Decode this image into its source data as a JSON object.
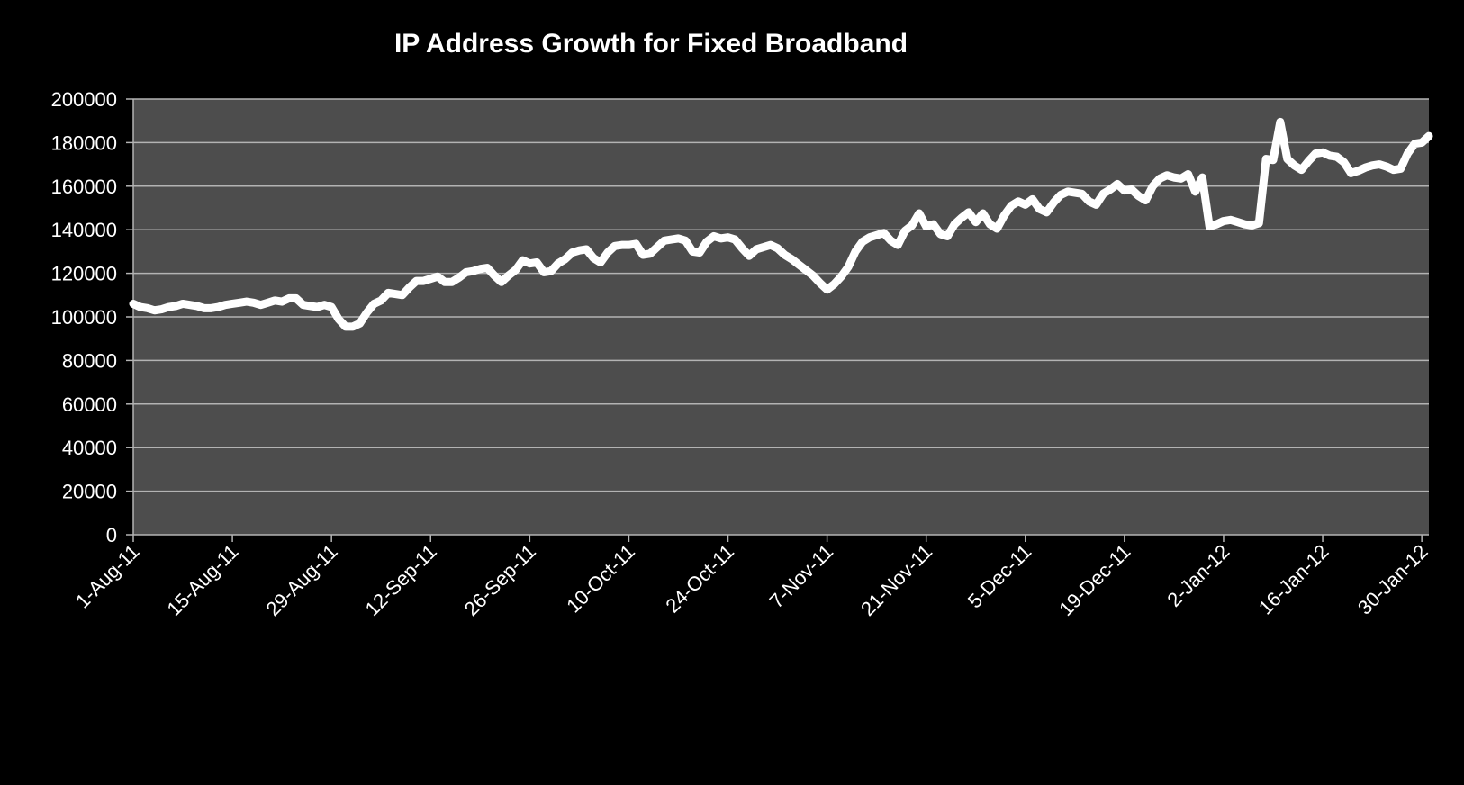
{
  "chart_data": {
    "type": "line",
    "title": "IP Address Growth for Fixed Broadband",
    "xlabel": "",
    "ylabel": "",
    "x_tick_labels": [
      "1-Aug-11",
      "15-Aug-11",
      "29-Aug-11",
      "12-Sep-11",
      "26-Sep-11",
      "10-Oct-11",
      "24-Oct-11",
      "7-Nov-11",
      "21-Nov-11",
      "5-Dec-11",
      "19-Dec-11",
      "2-Jan-12",
      "16-Jan-12",
      "30-Jan-12"
    ],
    "y_tick_labels": [
      "0",
      "20000",
      "40000",
      "60000",
      "80000",
      "100000",
      "120000",
      "140000",
      "160000",
      "180000",
      "200000"
    ],
    "ylim": [
      0,
      200000
    ],
    "xlim": [
      "1-Aug-11",
      "31-Jan-12"
    ],
    "grid": true,
    "legend": "none",
    "colors": {
      "background": "#000000",
      "plot_area": "#4d4d4d",
      "gridline": "#b3b3b3",
      "line": "#ffffff",
      "text": "#ffffff"
    },
    "series": [
      {
        "points": [
          [
            "1-Aug-11",
            106000
          ],
          [
            "2-Aug-11",
            104500
          ],
          [
            "3-Aug-11",
            104000
          ],
          [
            "4-Aug-11",
            103000
          ],
          [
            "5-Aug-11",
            103500
          ],
          [
            "6-Aug-11",
            104500
          ],
          [
            "7-Aug-11",
            105000
          ],
          [
            "8-Aug-11",
            106000
          ],
          [
            "9-Aug-11",
            105500
          ],
          [
            "10-Aug-11",
            105000
          ],
          [
            "11-Aug-11",
            104000
          ],
          [
            "12-Aug-11",
            104000
          ],
          [
            "13-Aug-11",
            104500
          ],
          [
            "14-Aug-11",
            105500
          ],
          [
            "15-Aug-11",
            106000
          ],
          [
            "16-Aug-11",
            106500
          ],
          [
            "17-Aug-11",
            107000
          ],
          [
            "18-Aug-11",
            106500
          ],
          [
            "19-Aug-11",
            105500
          ],
          [
            "20-Aug-11",
            106500
          ],
          [
            "21-Aug-11",
            107500
          ],
          [
            "22-Aug-11",
            107000
          ],
          [
            "23-Aug-11",
            108500
          ],
          [
            "24-Aug-11",
            108500
          ],
          [
            "25-Aug-11",
            105500
          ],
          [
            "26-Aug-11",
            105000
          ],
          [
            "27-Aug-11",
            104500
          ],
          [
            "28-Aug-11",
            105500
          ],
          [
            "29-Aug-11",
            104500
          ],
          [
            "30-Aug-11",
            99000
          ],
          [
            "31-Aug-11",
            95500
          ],
          [
            "1-Sep-11",
            95500
          ],
          [
            "2-Sep-11",
            97000
          ],
          [
            "3-Sep-11",
            102000
          ],
          [
            "4-Sep-11",
            106000
          ],
          [
            "5-Sep-11",
            107500
          ],
          [
            "6-Sep-11",
            111000
          ],
          [
            "7-Sep-11",
            110500
          ],
          [
            "8-Sep-11",
            110000
          ],
          [
            "9-Sep-11",
            113500
          ],
          [
            "10-Sep-11",
            116500
          ],
          [
            "11-Sep-11",
            116500
          ],
          [
            "12-Sep-11",
            117500
          ],
          [
            "13-Sep-11",
            118500
          ],
          [
            "14-Sep-11",
            116000
          ],
          [
            "15-Sep-11",
            116000
          ],
          [
            "16-Sep-11",
            118000
          ],
          [
            "17-Sep-11",
            120500
          ],
          [
            "18-Sep-11",
            121000
          ],
          [
            "19-Sep-11",
            122000
          ],
          [
            "20-Sep-11",
            122500
          ],
          [
            "21-Sep-11",
            119000
          ],
          [
            "22-Sep-11",
            116000
          ],
          [
            "23-Sep-11",
            119000
          ],
          [
            "24-Sep-11",
            121500
          ],
          [
            "25-Sep-11",
            126000
          ],
          [
            "26-Sep-11",
            124500
          ],
          [
            "27-Sep-11",
            125000
          ],
          [
            "28-Sep-11",
            120500
          ],
          [
            "29-Sep-11",
            121000
          ],
          [
            "30-Sep-11",
            124500
          ],
          [
            "1-Oct-11",
            126500
          ],
          [
            "2-Oct-11",
            129500
          ],
          [
            "3-Oct-11",
            130500
          ],
          [
            "4-Oct-11",
            131000
          ],
          [
            "5-Oct-11",
            127000
          ],
          [
            "6-Oct-11",
            125000
          ],
          [
            "7-Oct-11",
            129500
          ],
          [
            "8-Oct-11",
            132500
          ],
          [
            "9-Oct-11",
            133000
          ],
          [
            "10-Oct-11",
            133000
          ],
          [
            "11-Oct-11",
            133500
          ],
          [
            "12-Oct-11",
            128500
          ],
          [
            "13-Oct-11",
            129000
          ],
          [
            "14-Oct-11",
            132000
          ],
          [
            "15-Oct-11",
            135000
          ],
          [
            "16-Oct-11",
            135500
          ],
          [
            "17-Oct-11",
            136000
          ],
          [
            "18-Oct-11",
            135000
          ],
          [
            "19-Oct-11",
            130000
          ],
          [
            "20-Oct-11",
            129500
          ],
          [
            "21-Oct-11",
            134500
          ],
          [
            "22-Oct-11",
            137000
          ],
          [
            "23-Oct-11",
            136000
          ],
          [
            "24-Oct-11",
            136500
          ],
          [
            "25-Oct-11",
            135500
          ],
          [
            "26-Oct-11",
            131500
          ],
          [
            "27-Oct-11",
            128000
          ],
          [
            "28-Oct-11",
            131000
          ],
          [
            "29-Oct-11",
            132000
          ],
          [
            "30-Oct-11",
            133000
          ],
          [
            "31-Oct-11",
            131500
          ],
          [
            "1-Nov-11",
            128500
          ],
          [
            "2-Nov-11",
            126500
          ],
          [
            "3-Nov-11",
            124000
          ],
          [
            "4-Nov-11",
            121500
          ],
          [
            "5-Nov-11",
            119000
          ],
          [
            "6-Nov-11",
            115500
          ],
          [
            "7-Nov-11",
            112500
          ],
          [
            "8-Nov-11",
            115000
          ],
          [
            "9-Nov-11",
            118500
          ],
          [
            "10-Nov-11",
            123000
          ],
          [
            "11-Nov-11",
            130000
          ],
          [
            "12-Nov-11",
            134500
          ],
          [
            "13-Nov-11",
            136500
          ],
          [
            "14-Nov-11",
            137500
          ],
          [
            "15-Nov-11",
            138500
          ],
          [
            "16-Nov-11",
            135000
          ],
          [
            "17-Nov-11",
            133000
          ],
          [
            "18-Nov-11",
            139500
          ],
          [
            "19-Nov-11",
            142000
          ],
          [
            "20-Nov-11",
            147500
          ],
          [
            "21-Nov-11",
            141500
          ],
          [
            "22-Nov-11",
            142500
          ],
          [
            "23-Nov-11",
            138000
          ],
          [
            "24-Nov-11",
            137000
          ],
          [
            "25-Nov-11",
            142500
          ],
          [
            "26-Nov-11",
            145500
          ],
          [
            "27-Nov-11",
            148000
          ],
          [
            "28-Nov-11",
            143500
          ],
          [
            "29-Nov-11",
            147500
          ],
          [
            "30-Nov-11",
            142500
          ],
          [
            "1-Dec-11",
            140500
          ],
          [
            "2-Dec-11",
            146500
          ],
          [
            "3-Dec-11",
            151000
          ],
          [
            "4-Dec-11",
            153000
          ],
          [
            "5-Dec-11",
            151500
          ],
          [
            "6-Dec-11",
            154000
          ],
          [
            "7-Dec-11",
            149500
          ],
          [
            "8-Dec-11",
            148000
          ],
          [
            "9-Dec-11",
            152500
          ],
          [
            "10-Dec-11",
            156000
          ],
          [
            "11-Dec-11",
            157500
          ],
          [
            "12-Dec-11",
            157000
          ],
          [
            "13-Dec-11",
            156500
          ],
          [
            "14-Dec-11",
            153000
          ],
          [
            "15-Dec-11",
            151500
          ],
          [
            "16-Dec-11",
            156500
          ],
          [
            "17-Dec-11",
            158500
          ],
          [
            "18-Dec-11",
            161000
          ],
          [
            "19-Dec-11",
            158000
          ],
          [
            "20-Dec-11",
            158500
          ],
          [
            "21-Dec-11",
            155500
          ],
          [
            "22-Dec-11",
            153500
          ],
          [
            "23-Dec-11",
            160000
          ],
          [
            "24-Dec-11",
            163500
          ],
          [
            "25-Dec-11",
            165000
          ],
          [
            "26-Dec-11",
            164000
          ],
          [
            "27-Dec-11",
            163500
          ],
          [
            "28-Dec-11",
            165500
          ],
          [
            "29-Dec-11",
            157500
          ],
          [
            "30-Dec-11",
            164000
          ],
          [
            "31-Dec-11",
            141500
          ],
          [
            "1-Jan-12",
            142500
          ],
          [
            "2-Jan-12",
            144000
          ],
          [
            "3-Jan-12",
            144500
          ],
          [
            "4-Jan-12",
            143500
          ],
          [
            "5-Jan-12",
            142500
          ],
          [
            "6-Jan-12",
            142000
          ],
          [
            "7-Jan-12",
            143000
          ],
          [
            "8-Jan-12",
            172500
          ],
          [
            "9-Jan-12",
            172000
          ],
          [
            "10-Jan-12",
            189500
          ],
          [
            "11-Jan-12",
            172500
          ],
          [
            "12-Jan-12",
            169500
          ],
          [
            "13-Jan-12",
            167500
          ],
          [
            "14-Jan-12",
            171500
          ],
          [
            "15-Jan-12",
            175000
          ],
          [
            "16-Jan-12",
            175500
          ],
          [
            "17-Jan-12",
            174000
          ],
          [
            "18-Jan-12",
            173500
          ],
          [
            "19-Jan-12",
            171000
          ],
          [
            "20-Jan-12",
            166000
          ],
          [
            "21-Jan-12",
            167000
          ],
          [
            "22-Jan-12",
            168500
          ],
          [
            "23-Jan-12",
            169500
          ],
          [
            "24-Jan-12",
            170000
          ],
          [
            "25-Jan-12",
            169000
          ],
          [
            "26-Jan-12",
            167500
          ],
          [
            "27-Jan-12",
            168000
          ],
          [
            "28-Jan-12",
            175000
          ],
          [
            "29-Jan-12",
            179500
          ],
          [
            "30-Jan-12",
            180000
          ],
          [
            "31-Jan-12",
            183000
          ]
        ]
      }
    ]
  }
}
